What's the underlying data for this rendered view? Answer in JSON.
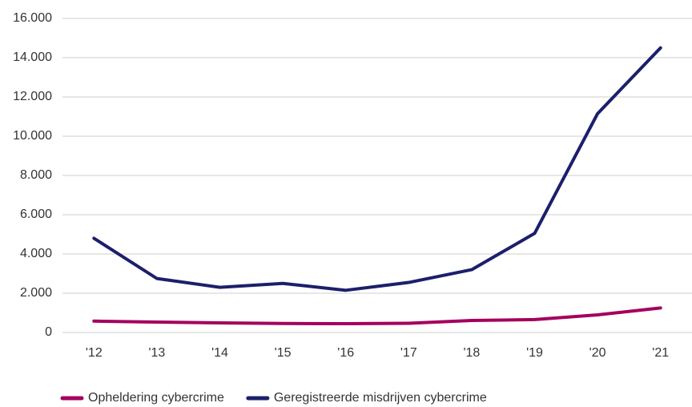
{
  "chart_data": {
    "type": "line",
    "categories": [
      "'12",
      "'13",
      "'14",
      "'15",
      "'16",
      "'17",
      "'18",
      "'19",
      "'20",
      "'21"
    ],
    "series": [
      {
        "name": "Opheldering cybercrime",
        "color": "#a3005e",
        "values": [
          580,
          530,
          490,
          460,
          450,
          470,
          610,
          660,
          900,
          1250
        ]
      },
      {
        "name": "Geregistreerde misdrijven cybercrime",
        "color": "#1c1f6b",
        "values": [
          4800,
          2750,
          2300,
          2500,
          2150,
          2550,
          3200,
          5050,
          11150,
          14500
        ]
      }
    ],
    "ylim": [
      0,
      16000
    ],
    "yticks": [
      0,
      {
        "value": 2000,
        "label": "2.000"
      },
      {
        "value": 4000,
        "label": "4.000"
      },
      {
        "value": 6000,
        "label": "6.000"
      },
      {
        "value": 8000,
        "label": "8.000"
      },
      {
        "value": 10000,
        "label": "10.000"
      },
      {
        "value": 12000,
        "label": "12.000"
      },
      {
        "value": 14000,
        "label": "14.000"
      },
      {
        "value": 16000,
        "label": "16.000"
      }
    ],
    "grid": true,
    "legend": "bottom"
  }
}
